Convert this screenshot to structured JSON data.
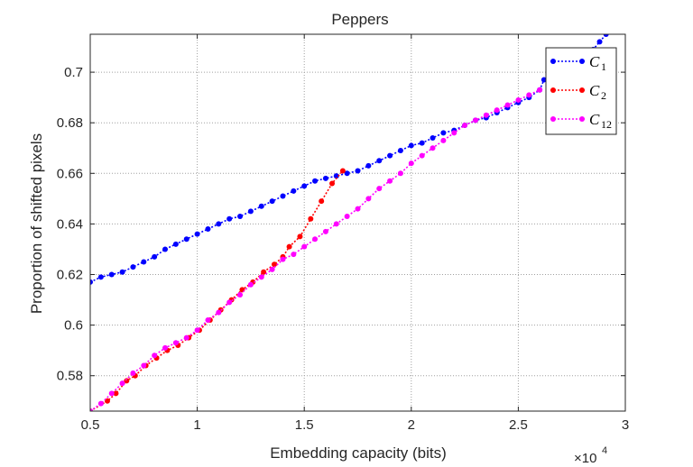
{
  "chart_data": {
    "type": "line",
    "title": "Peppers",
    "xlabel": "Embedding capacity (bits)",
    "ylabel": "Proportion of shifted pixels",
    "x_multiplier_label": "×10",
    "x_multiplier_exp": "4",
    "xlim": [
      5000,
      30000
    ],
    "ylim": [
      0.566,
      0.715
    ],
    "x_ticks": [
      5000,
      10000,
      15000,
      20000,
      25000,
      30000
    ],
    "x_tick_labels": [
      "0.5",
      "1",
      "1.5",
      "2",
      "2.5",
      "3"
    ],
    "y_ticks": [
      0.58,
      0.6,
      0.62,
      0.64,
      0.66,
      0.68,
      0.7
    ],
    "y_tick_labels": [
      "0.58",
      "0.6",
      "0.62",
      "0.64",
      "0.66",
      "0.68",
      "0.7"
    ],
    "grid": true,
    "legend_position": "top-right",
    "series": [
      {
        "name": "C",
        "subscript": "1",
        "color": "#0000ff",
        "x": [
          5000,
          5500,
          6000,
          6500,
          7000,
          7500,
          8000,
          8500,
          9000,
          9500,
          10000,
          10500,
          11000,
          11500,
          12000,
          12500,
          13000,
          13500,
          14000,
          14500,
          15000,
          15500,
          16000,
          16500,
          17000,
          17500,
          18000,
          18500,
          19000,
          19500,
          20000,
          20500,
          21000,
          21500,
          22000,
          22500,
          23000,
          23500,
          24000,
          24500,
          25000,
          25500,
          26000,
          26200,
          28500,
          28800,
          29100
        ],
        "y": [
          0.617,
          0.619,
          0.62,
          0.621,
          0.623,
          0.625,
          0.627,
          0.63,
          0.632,
          0.634,
          0.636,
          0.638,
          0.64,
          0.642,
          0.643,
          0.645,
          0.647,
          0.649,
          0.651,
          0.653,
          0.655,
          0.657,
          0.658,
          0.659,
          0.66,
          0.661,
          0.663,
          0.665,
          0.667,
          0.669,
          0.671,
          0.672,
          0.674,
          0.676,
          0.677,
          0.679,
          0.681,
          0.682,
          0.684,
          0.686,
          0.688,
          0.69,
          0.693,
          0.697,
          0.709,
          0.712,
          0.715
        ]
      },
      {
        "name": "C",
        "subscript": "2",
        "color": "#ff0000",
        "x": [
          5000,
          5800,
          6200,
          6700,
          7100,
          7600,
          8100,
          8600,
          9100,
          9600,
          10100,
          10600,
          11100,
          11600,
          12100,
          12600,
          13100,
          13600,
          14000,
          14300,
          14800,
          15300,
          15800,
          16300,
          16800
        ],
        "y": [
          0.566,
          0.57,
          0.573,
          0.578,
          0.58,
          0.584,
          0.587,
          0.59,
          0.592,
          0.595,
          0.598,
          0.602,
          0.606,
          0.61,
          0.614,
          0.617,
          0.621,
          0.624,
          0.627,
          0.631,
          0.635,
          0.642,
          0.649,
          0.656,
          0.661
        ]
      },
      {
        "name": "C",
        "subscript": "12",
        "color": "#ff00ff",
        "x": [
          5000,
          5500,
          6000,
          6500,
          7000,
          7500,
          8000,
          8500,
          9000,
          9500,
          10000,
          10500,
          11000,
          11500,
          12000,
          12500,
          13000,
          13500,
          14000,
          14500,
          15000,
          15500,
          16000,
          16500,
          17000,
          17500,
          18000,
          18500,
          19000,
          19500,
          20000,
          20500,
          21000,
          21500,
          22000,
          22500,
          23000,
          23500,
          24000,
          24500,
          25000,
          25500,
          26000
        ],
        "y": [
          0.566,
          0.569,
          0.573,
          0.577,
          0.581,
          0.584,
          0.588,
          0.591,
          0.593,
          0.595,
          0.598,
          0.602,
          0.605,
          0.609,
          0.612,
          0.616,
          0.619,
          0.622,
          0.626,
          0.628,
          0.631,
          0.634,
          0.637,
          0.64,
          0.643,
          0.646,
          0.65,
          0.654,
          0.657,
          0.66,
          0.664,
          0.667,
          0.67,
          0.673,
          0.676,
          0.679,
          0.681,
          0.683,
          0.685,
          0.687,
          0.689,
          0.691,
          0.693
        ]
      }
    ]
  }
}
